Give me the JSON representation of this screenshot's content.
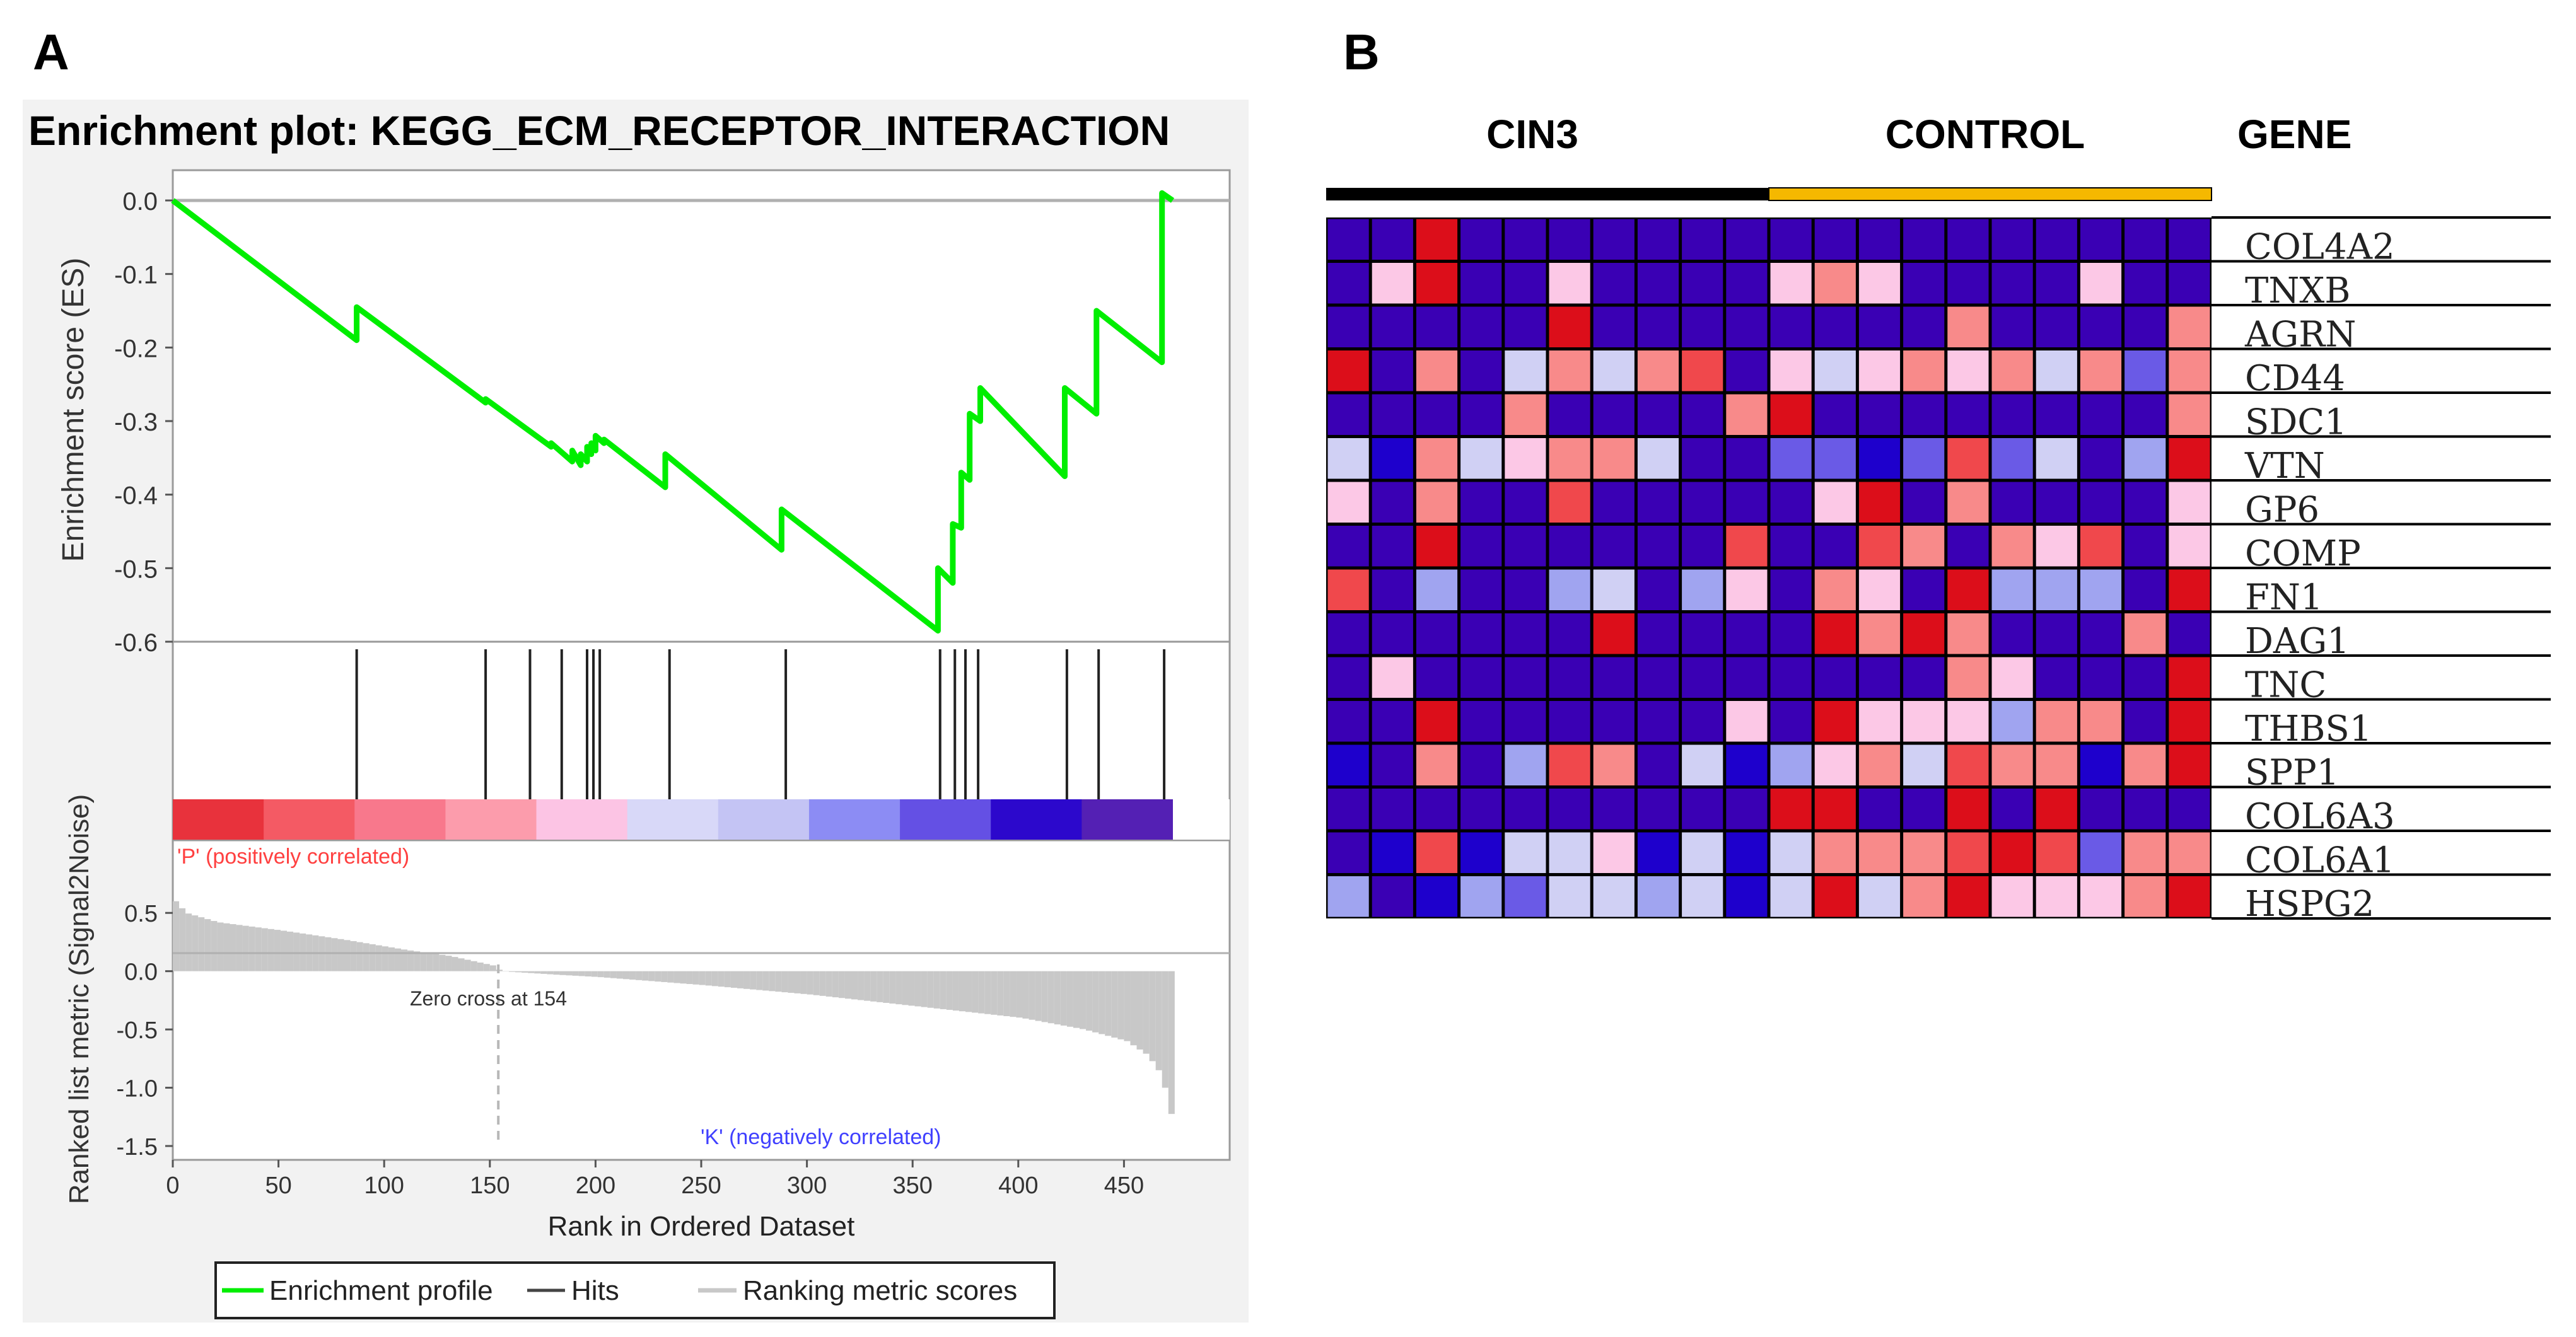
{
  "panel_labels": {
    "a": "A",
    "b": "B"
  },
  "colors": {
    "es_line": "#00ee00",
    "hit_line": "#222222",
    "metric_bar": "#c8c8c8",
    "pos_text": "#ff4040",
    "neg_text": "#4040ff",
    "cin3_bar": "#000000",
    "control_bar": "#f5b800"
  },
  "heat_palette": {
    "0": "#3a00b4",
    "1": "#1e00cc",
    "2": "#6a5ae6",
    "3": "#a0a4f0",
    "4": "#d0d0f4",
    "5": "#fcc8e6",
    "6": "#f88a8a",
    "7": "#f0484c",
    "8": "#dc0e1a"
  },
  "chart_data": [
    {
      "type": "line",
      "title": "Enrichment plot: KEGG_ECM_RECEPTOR_INTERACTION",
      "ylabel": "Enrichment score (ES)",
      "ylim": [
        -0.6,
        0.0
      ],
      "yticks": [
        "0.0",
        "-0.1",
        "-0.2",
        "-0.3",
        "-0.4",
        "-0.5",
        "-0.6"
      ],
      "series": [
        {
          "name": "Enrichment profile",
          "x": [
            0,
            87,
            87,
            148,
            148,
            179,
            179,
            189,
            189,
            193,
            193,
            196,
            196,
            198,
            198,
            200,
            200,
            204,
            204,
            233,
            233,
            288,
            288,
            362,
            362,
            369,
            369,
            373,
            373,
            377,
            377,
            382,
            382,
            422,
            422,
            437,
            437,
            468,
            468,
            473
          ],
          "y": [
            0.0,
            -0.19,
            -0.145,
            -0.275,
            -0.27,
            -0.335,
            -0.33,
            -0.355,
            -0.34,
            -0.36,
            -0.345,
            -0.355,
            -0.335,
            -0.345,
            -0.33,
            -0.34,
            -0.32,
            -0.33,
            -0.325,
            -0.39,
            -0.345,
            -0.475,
            -0.42,
            -0.585,
            -0.5,
            -0.52,
            -0.44,
            -0.445,
            -0.37,
            -0.38,
            -0.29,
            -0.3,
            -0.255,
            -0.375,
            -0.255,
            -0.29,
            -0.15,
            -0.22,
            0.01,
            0.0
          ]
        }
      ],
      "hits": [
        87,
        148,
        169,
        184,
        196,
        199,
        202,
        235,
        290,
        363,
        370,
        375,
        381,
        423,
        438,
        469
      ]
    },
    {
      "type": "area",
      "ylabel": "Ranked list metric (Signal2Noise)",
      "xlabel": "Rank in Ordered Dataset",
      "xlim": [
        0,
        500
      ],
      "ylim": [
        -1.5,
        0.75
      ],
      "xticks": [
        "0",
        "50",
        "100",
        "150",
        "200",
        "250",
        "300",
        "350",
        "400",
        "450"
      ],
      "yticks": [
        "0.5",
        "0.0",
        "-0.5",
        "-1.0",
        "-1.5"
      ],
      "series": [
        {
          "name": "Ranking metric scores",
          "x": [
            0,
            5,
            20,
            50,
            80,
            110,
            130,
            150,
            154,
            180,
            200,
            250,
            300,
            350,
            400,
            430,
            450,
            460,
            465,
            468,
            470,
            472,
            473
          ],
          "y": [
            0.6,
            0.5,
            0.42,
            0.35,
            0.27,
            0.18,
            0.13,
            0.05,
            0.0,
            -0.03,
            -0.05,
            -0.12,
            -0.2,
            -0.3,
            -0.4,
            -0.5,
            -0.6,
            -0.72,
            -0.85,
            -1.0,
            -1.15,
            -1.3,
            -1.45
          ]
        }
      ],
      "zero_cross": 154,
      "color_bar": [
        "#e8323c",
        "#f45a64",
        "#f8788c",
        "#fc9cac",
        "#fcc4e4",
        "#d8d8f8",
        "#c4c4f4",
        "#8c8cf4",
        "#6450e4",
        "#2c08cc",
        "#5420b4"
      ],
      "annotations": {
        "pos": "'P' (positively correlated)",
        "neg": "'K' (negatively correlated)",
        "zero": "Zero cross at 154"
      },
      "legend": [
        "Enrichment profile",
        "Hits",
        "Ranking metric scores"
      ]
    },
    {
      "type": "heatmap",
      "groups": [
        "CIN3",
        "CONTROL"
      ],
      "gene_header": "GENE",
      "cin3_columns": 10,
      "genes": [
        "COL4A2",
        "TNXB",
        "AGRN",
        "CD44",
        "SDC1",
        "VTN",
        "GP6",
        "COMP",
        "FN1",
        "DAG1",
        "TNC",
        "THBS1",
        "SPP1",
        "COL6A3",
        "COL6A1",
        "HSPG2"
      ],
      "matrix": [
        [
          0,
          0,
          8,
          0,
          0,
          0,
          0,
          0,
          0,
          0,
          0,
          0,
          0,
          0,
          0,
          0,
          0,
          0,
          0,
          0
        ],
        [
          0,
          5,
          8,
          0,
          0,
          5,
          0,
          0,
          0,
          0,
          5,
          6,
          5,
          0,
          0,
          0,
          0,
          5,
          0,
          0
        ],
        [
          0,
          0,
          0,
          0,
          0,
          8,
          0,
          0,
          0,
          0,
          0,
          0,
          0,
          0,
          6,
          0,
          0,
          0,
          0,
          6
        ],
        [
          8,
          0,
          6,
          0,
          4,
          6,
          4,
          6,
          7,
          0,
          5,
          4,
          5,
          6,
          5,
          6,
          4,
          6,
          2,
          6
        ],
        [
          0,
          0,
          0,
          0,
          6,
          0,
          0,
          0,
          0,
          6,
          8,
          0,
          0,
          0,
          0,
          0,
          0,
          0,
          0,
          6
        ],
        [
          4,
          1,
          6,
          4,
          5,
          6,
          6,
          4,
          0,
          0,
          2,
          2,
          1,
          2,
          7,
          2,
          4,
          0,
          3,
          8
        ],
        [
          5,
          0,
          6,
          0,
          0,
          7,
          0,
          0,
          0,
          0,
          0,
          5,
          8,
          0,
          6,
          0,
          0,
          0,
          0,
          5
        ],
        [
          0,
          0,
          8,
          0,
          0,
          0,
          0,
          0,
          0,
          7,
          0,
          0,
          7,
          6,
          0,
          6,
          5,
          7,
          0,
          5
        ],
        [
          7,
          0,
          3,
          0,
          0,
          3,
          4,
          0,
          3,
          5,
          0,
          6,
          5,
          0,
          8,
          3,
          3,
          3,
          0,
          8
        ],
        [
          0,
          0,
          0,
          0,
          0,
          0,
          8,
          0,
          0,
          0,
          0,
          8,
          6,
          8,
          6,
          0,
          0,
          0,
          6,
          0
        ],
        [
          0,
          5,
          0,
          0,
          0,
          0,
          0,
          0,
          0,
          0,
          0,
          0,
          0,
          0,
          6,
          5,
          0,
          0,
          0,
          8
        ],
        [
          0,
          0,
          8,
          0,
          0,
          0,
          0,
          0,
          0,
          5,
          0,
          8,
          5,
          5,
          5,
          3,
          6,
          6,
          0,
          8
        ],
        [
          1,
          0,
          6,
          0,
          3,
          7,
          6,
          0,
          4,
          1,
          3,
          5,
          6,
          4,
          7,
          6,
          6,
          1,
          6,
          8
        ],
        [
          0,
          0,
          0,
          0,
          0,
          0,
          0,
          0,
          0,
          0,
          8,
          8,
          0,
          0,
          8,
          0,
          8,
          0,
          0,
          0
        ],
        [
          0,
          1,
          7,
          1,
          4,
          4,
          5,
          1,
          4,
          1,
          4,
          6,
          6,
          6,
          7,
          8,
          7,
          2,
          6,
          6
        ],
        [
          3,
          0,
          1,
          3,
          2,
          4,
          4,
          3,
          4,
          1,
          4,
          8,
          4,
          6,
          8,
          5,
          5,
          5,
          6,
          8
        ]
      ]
    }
  ]
}
